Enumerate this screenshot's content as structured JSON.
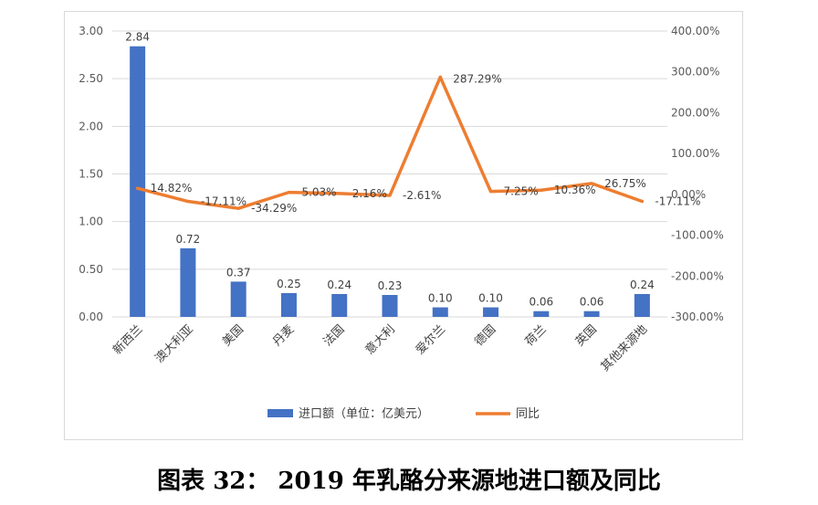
{
  "caption": "图表 32：  2019 年乳酪分来源地进口额及同比",
  "colors": {
    "bar": "#4472C4",
    "line": "#ED7D31",
    "grid": "#d9d9d9",
    "text": "#595959"
  },
  "chart_data": {
    "type": "bar",
    "categories": [
      "新西兰",
      "澳大利亚",
      "美国",
      "丹麦",
      "法国",
      "意大利",
      "爱尔兰",
      "德国",
      "荷兰",
      "英国",
      "其他来源地"
    ],
    "series": [
      {
        "name": "进口额（单位：亿美元）",
        "type": "bar",
        "axis": "left",
        "values": [
          2.84,
          0.72,
          0.37,
          0.25,
          0.24,
          0.23,
          0.1,
          0.1,
          0.06,
          0.06,
          0.24
        ],
        "labels": [
          "2.84",
          "0.72",
          "0.37",
          "0.25",
          "0.24",
          "0.23",
          "0.10",
          "0.10",
          "0.06",
          "0.06",
          "0.24"
        ]
      },
      {
        "name": "同比",
        "type": "line",
        "axis": "right",
        "values": [
          14.82,
          -17.11,
          -34.29,
          5.03,
          2.16,
          -2.61,
          287.29,
          7.25,
          10.36,
          26.75,
          -17.11
        ],
        "labels": [
          "14.82%",
          "-17.11%",
          "-34.29%",
          "5.03%",
          "2.16%",
          "-2.61%",
          "287.29%",
          "7.25%",
          "10.36%",
          "26.75%",
          "-17.11%"
        ]
      }
    ],
    "left_axis": {
      "ylim": [
        0,
        3
      ],
      "ticks": [
        "0.00",
        "0.50",
        "1.00",
        "1.50",
        "2.00",
        "2.50",
        "3.00"
      ]
    },
    "right_axis": {
      "ylim": [
        -300,
        400
      ],
      "ticks": [
        "-300.00%",
        "-200.00%",
        "-100.00%",
        "0.00%",
        "100.00%",
        "200.00%",
        "300.00%",
        "400.00%"
      ]
    },
    "grid": true,
    "legend_position": "bottom"
  }
}
